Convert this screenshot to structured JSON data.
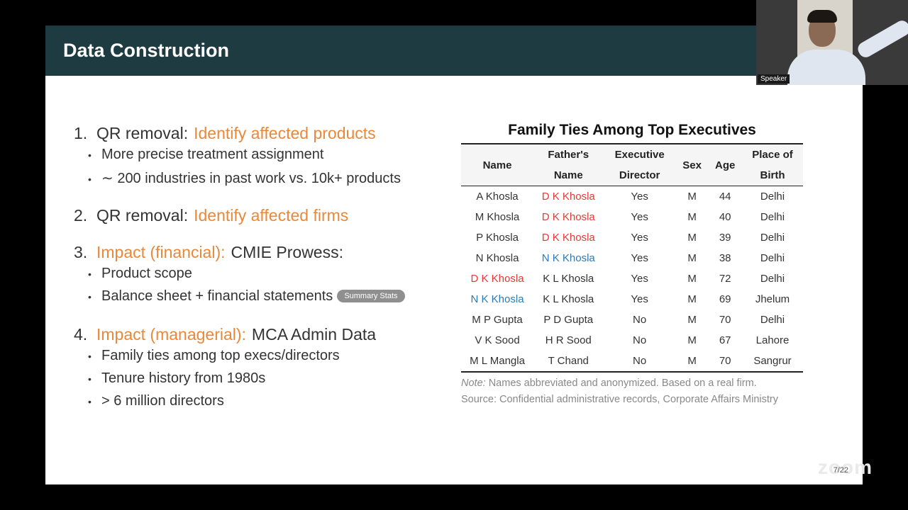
{
  "slide": {
    "title": "Data Construction",
    "page": "7/22"
  },
  "left": {
    "items": [
      {
        "num": "1.",
        "prefix": "QR removal:",
        "highlight": "Identify affected products",
        "rest": "",
        "subs": [
          {
            "text": "More precise treatment assignment"
          },
          {
            "text": "∼ 200 industries in past work vs. 10k+ products"
          }
        ]
      },
      {
        "num": "2.",
        "prefix": "QR removal:",
        "highlight": "Identify affected firms",
        "rest": "",
        "subs": []
      },
      {
        "num": "3.",
        "prefix": "",
        "highlight": "Impact (financial):",
        "rest": "CMIE Prowess:",
        "subs": [
          {
            "text": "Product scope"
          },
          {
            "text": "Balance sheet + financial statements",
            "pill": "Summary Stats"
          }
        ]
      },
      {
        "num": "4.",
        "prefix": "",
        "highlight": "Impact (managerial):",
        "rest": "MCA Admin Data",
        "subs": [
          {
            "text": "Family ties among top execs/directors"
          },
          {
            "text": "Tenure history from 1980s"
          },
          {
            "text": "> 6 million directors"
          }
        ]
      }
    ]
  },
  "table": {
    "title": "Family Ties Among Top Executives",
    "headers": [
      [
        "Name"
      ],
      [
        "Father's",
        "Name"
      ],
      [
        "Executive",
        "Director"
      ],
      [
        "Sex"
      ],
      [
        "Age"
      ],
      [
        "Place of",
        "Birth"
      ]
    ],
    "rows": [
      {
        "name": "A Khosla",
        "name_color": "",
        "father": "D K Khosla",
        "father_color": "red",
        "exec": "Yes",
        "sex": "M",
        "age": "44",
        "birth": "Delhi"
      },
      {
        "name": "M Khosla",
        "name_color": "",
        "father": "D K Khosla",
        "father_color": "red",
        "exec": "Yes",
        "sex": "M",
        "age": "40",
        "birth": "Delhi"
      },
      {
        "name": "P Khosla",
        "name_color": "",
        "father": "D K Khosla",
        "father_color": "red",
        "exec": "Yes",
        "sex": "M",
        "age": "39",
        "birth": "Delhi"
      },
      {
        "name": "N Khosla",
        "name_color": "",
        "father": "N K Khosla",
        "father_color": "blue",
        "exec": "Yes",
        "sex": "M",
        "age": "38",
        "birth": "Delhi"
      },
      {
        "name": "D K Khosla",
        "name_color": "red",
        "father": "K L Khosla",
        "father_color": "",
        "exec": "Yes",
        "sex": "M",
        "age": "72",
        "birth": "Delhi"
      },
      {
        "name": "N K Khosla",
        "name_color": "blue",
        "father": "K L Khosla",
        "father_color": "",
        "exec": "Yes",
        "sex": "M",
        "age": "69",
        "birth": "Jhelum"
      },
      {
        "name": "M P Gupta",
        "name_color": "",
        "father": "P D Gupta",
        "father_color": "",
        "exec": "No",
        "sex": "M",
        "age": "70",
        "birth": "Delhi"
      },
      {
        "name": "V K Sood",
        "name_color": "",
        "father": "H R Sood",
        "father_color": "",
        "exec": "No",
        "sex": "M",
        "age": "67",
        "birth": "Lahore"
      },
      {
        "name": "M L Mangla",
        "name_color": "",
        "father": "T Chand",
        "father_color": "",
        "exec": "No",
        "sex": "M",
        "age": "70",
        "birth": "Sangrur"
      }
    ],
    "note_label": "Note:",
    "note_text": "Names abbreviated and anonymized. Based on a real firm.",
    "source_text": "Source: Confidential administrative records, Corporate Affairs Ministry"
  },
  "camera": {
    "label": "Speaker"
  }
}
